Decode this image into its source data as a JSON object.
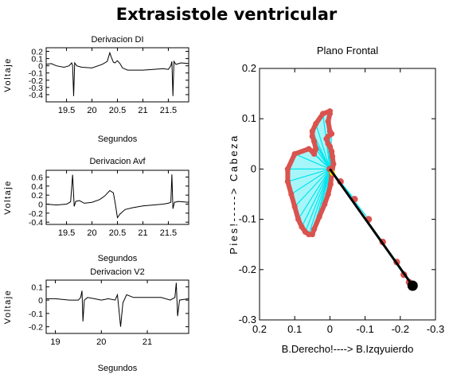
{
  "page": {
    "title": "Extrasistole ventricular"
  },
  "chart_data": [
    {
      "type": "line",
      "title": "Derivacion DI",
      "xlabel": "Segundos",
      "ylabel": "Voltaje",
      "xlim": [
        19.1,
        21.9
      ],
      "ylim": [
        -0.5,
        0.25
      ],
      "xticks": [
        19.5,
        20,
        20.5,
        21,
        21.5
      ],
      "xtick_labels": [
        "19.5",
        "20",
        "20.5",
        "21",
        "21.5"
      ],
      "yticks": [
        0.2,
        0.1,
        0,
        -0.1,
        -0.2,
        -0.3,
        -0.4
      ],
      "ytick_labels": [
        "0.2",
        "0.1",
        "0",
        "-0.1",
        "-0.2",
        "-0.3",
        "-0.4"
      ],
      "series": [
        {
          "color": "#000000",
          "x": [
            19.1,
            19.2,
            19.3,
            19.45,
            19.55,
            19.6,
            19.62,
            19.64,
            19.66,
            19.7,
            19.8,
            20.0,
            20.2,
            20.3,
            20.35,
            20.38,
            20.42,
            20.45,
            20.5,
            20.55,
            20.6,
            20.7,
            20.8,
            21.0,
            21.2,
            21.4,
            21.5,
            21.55,
            21.57,
            21.59,
            21.61,
            21.65,
            21.75,
            21.9
          ],
          "y": [
            0.02,
            0.03,
            0.0,
            -0.02,
            0.0,
            0.04,
            0.0,
            -0.42,
            0.04,
            0.0,
            -0.02,
            -0.03,
            0.02,
            0.06,
            0.18,
            0.12,
            0.05,
            0.04,
            0.07,
            0.03,
            -0.03,
            -0.06,
            -0.06,
            -0.06,
            -0.05,
            -0.04,
            -0.05,
            0.0,
            0.06,
            -0.42,
            0.06,
            0.02,
            0.04,
            0.03
          ]
        }
      ]
    },
    {
      "type": "line",
      "title": "Derivacion Avf",
      "xlabel": "Segundos",
      "ylabel": "Voltaje",
      "xlim": [
        19.1,
        21.9
      ],
      "ylim": [
        -0.45,
        0.75
      ],
      "xticks": [
        19.5,
        20,
        20.5,
        21,
        21.5
      ],
      "xtick_labels": [
        "19.5",
        "20",
        "20.5",
        "21",
        "21.5"
      ],
      "yticks": [
        0.6,
        0.4,
        0.2,
        0,
        -0.2,
        -0.4
      ],
      "ytick_labels": [
        "0.6",
        "0.4",
        "0.2",
        "0",
        "-0.2",
        "-0.4"
      ],
      "series": [
        {
          "color": "#000000",
          "x": [
            19.1,
            19.3,
            19.5,
            19.58,
            19.62,
            19.65,
            19.68,
            19.75,
            19.85,
            20.0,
            20.15,
            20.25,
            20.35,
            20.42,
            20.46,
            20.5,
            20.55,
            20.65,
            20.8,
            21.0,
            21.2,
            21.4,
            21.5,
            21.55,
            21.57,
            21.59,
            21.62,
            21.7,
            21.9
          ],
          "y": [
            0.0,
            -0.02,
            0.0,
            0.05,
            0.65,
            -0.05,
            0.06,
            0.08,
            0.02,
            0.04,
            0.1,
            0.18,
            0.3,
            0.25,
            0.0,
            -0.3,
            -0.22,
            -0.12,
            -0.08,
            -0.04,
            -0.02,
            0.0,
            0.02,
            0.04,
            0.66,
            -0.1,
            0.04,
            0.06,
            0.04
          ]
        }
      ]
    },
    {
      "type": "line",
      "title": "Derivacion V2",
      "xlabel": "Segundos",
      "ylabel": "Voltaje",
      "xlim": [
        18.8,
        21.9
      ],
      "ylim": [
        -0.25,
        0.15
      ],
      "xticks": [
        19,
        20,
        21
      ],
      "xtick_labels": [
        "19",
        "20",
        "21"
      ],
      "yticks": [
        0.1,
        0,
        -0.1,
        -0.2
      ],
      "ytick_labels": [
        "0.1",
        "0",
        "-0.1",
        "-0.2"
      ],
      "series": [
        {
          "color": "#000000",
          "x": [
            18.8,
            19.0,
            19.3,
            19.5,
            19.55,
            19.58,
            19.6,
            19.63,
            19.7,
            19.85,
            20.0,
            20.15,
            20.3,
            20.35,
            20.38,
            20.42,
            20.47,
            20.55,
            20.7,
            20.9,
            21.1,
            21.3,
            21.5,
            21.6,
            21.63,
            21.66,
            21.7,
            21.9
          ],
          "y": [
            0.01,
            0.01,
            0.0,
            0.0,
            0.02,
            0.07,
            -0.16,
            0.0,
            0.02,
            0.01,
            0.0,
            0.01,
            0.0,
            0.04,
            -0.06,
            -0.2,
            -0.02,
            0.04,
            0.02,
            0.02,
            0.02,
            0.02,
            0.0,
            0.02,
            0.13,
            -0.12,
            0.0,
            0.01
          ]
        }
      ]
    },
    {
      "type": "scatter",
      "title": "Plano Frontal",
      "xlabel": "B.Derecho!----> B.Izqyuierdo",
      "ylabel": "Pies!-----> Cabeza",
      "xlim": [
        0.2,
        -0.3
      ],
      "ylim": [
        -0.3,
        0.2
      ],
      "xticks": [
        0.2,
        0.1,
        0,
        -0.1,
        -0.2,
        -0.3
      ],
      "xtick_labels": [
        "0.2",
        "0.1",
        "0",
        "-0.1",
        "-0.2",
        "-0.3"
      ],
      "yticks": [
        0.2,
        0.1,
        0,
        -0.1,
        -0.2,
        -0.3
      ],
      "ytick_labels": [
        "0.2",
        "0.1",
        "0",
        "-0.1",
        "-0.2",
        "-0.3"
      ],
      "loop": {
        "color": "#d9534f",
        "fill_color": "#00e5ee",
        "x": [
          0.0,
          0.005,
          0.0,
          0.0,
          0.02,
          0.04,
          0.05,
          0.05,
          0.045,
          0.04,
          0.045,
          0.05,
          0.06,
          0.1,
          0.12,
          0.12,
          0.11,
          0.1,
          0.09,
          0.08,
          0.07,
          0.06,
          0.05,
          0.045,
          0.03,
          0.015,
          0.005,
          -0.002,
          -0.005,
          -0.01,
          -0.007,
          -0.005,
          0.0,
          0.005,
          0.01,
          0.005,
          -0.005,
          0.0
        ],
        "y": [
          0.075,
          0.095,
          0.11,
          0.115,
          0.11,
          0.09,
          0.075,
          0.065,
          0.055,
          0.04,
          0.03,
          0.035,
          0.04,
          0.03,
          0.0,
          -0.025,
          -0.05,
          -0.075,
          -0.1,
          -0.115,
          -0.125,
          -0.13,
          -0.13,
          -0.12,
          -0.095,
          -0.07,
          -0.05,
          -0.03,
          -0.01,
          0.01,
          0.025,
          0.035,
          0.045,
          0.05,
          0.06,
          0.065,
          0.07,
          0.075
        ]
      },
      "tail": {
        "color": "#d9534f",
        "x": [
          0.0,
          -0.03,
          -0.07,
          -0.11,
          -0.15,
          -0.19,
          -0.21,
          -0.225
        ],
        "y": [
          0.0,
          -0.025,
          -0.06,
          -0.1,
          -0.145,
          -0.185,
          -0.21,
          -0.225
        ]
      },
      "vector": {
        "from": [
          0.0,
          0.0
        ],
        "to": [
          -0.235,
          -0.232
        ],
        "color": "#000000"
      }
    }
  ]
}
